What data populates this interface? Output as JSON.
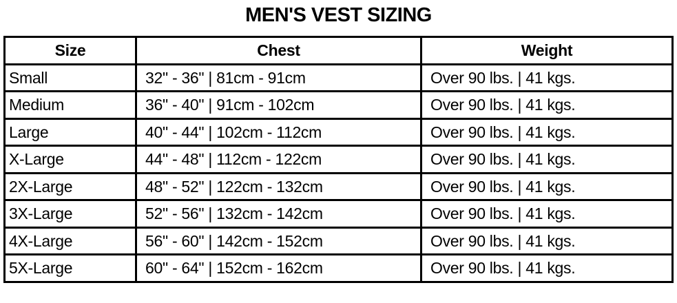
{
  "title": "MEN'S VEST SIZING",
  "table": {
    "headers": [
      "Size",
      "Chest",
      "Weight"
    ],
    "rows": [
      [
        "Small",
        "32\" - 36\" | 81cm - 91cm",
        "Over 90 lbs. | 41 kgs."
      ],
      [
        "Medium",
        "36\" - 40\" | 91cm - 102cm",
        "Over 90 lbs. | 41 kgs."
      ],
      [
        "Large",
        "40\" - 44\" | 102cm - 112cm",
        "Over 90 lbs. | 41 kgs."
      ],
      [
        "X-Large",
        "44\" - 48\" | 112cm - 122cm",
        "Over 90 lbs. | 41 kgs."
      ],
      [
        "2X-Large",
        "48\" - 52\" | 122cm - 132cm",
        "Over 90 lbs. | 41 kgs."
      ],
      [
        "3X-Large",
        "52\" - 56\" | 132cm - 142cm",
        "Over 90 lbs. | 41 kgs."
      ],
      [
        "4X-Large",
        "56\" - 60\" | 142cm - 152cm",
        "Over 90 lbs. | 41 kgs."
      ],
      [
        "5X-Large",
        "60\" - 64\" | 152cm - 162cm",
        "Over 90 lbs. | 41 kgs."
      ]
    ]
  }
}
